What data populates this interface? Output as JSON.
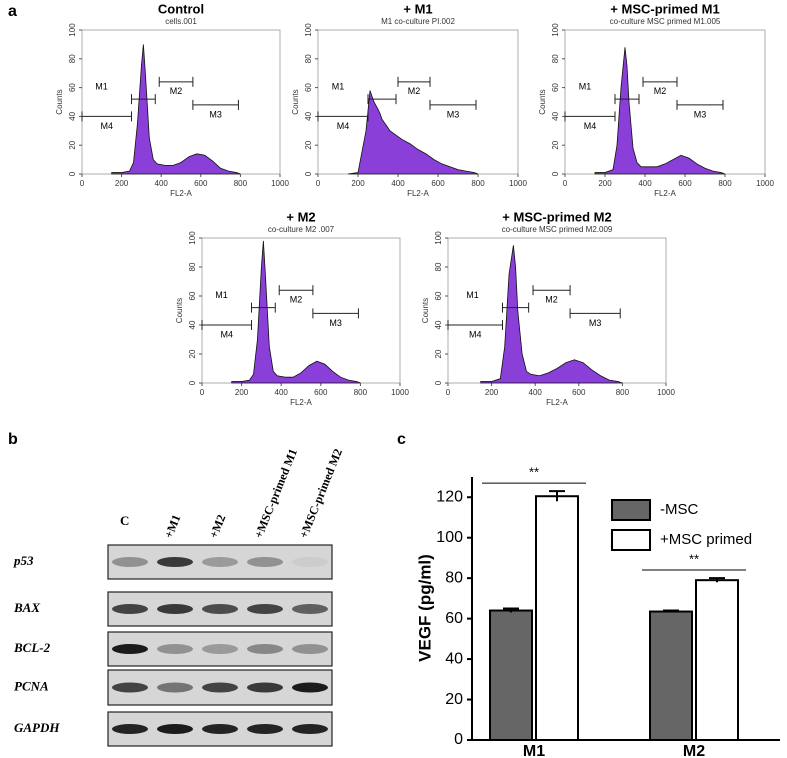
{
  "panel_labels": [
    "a",
    "b",
    "c"
  ],
  "chart_data": [
    {
      "type": "area",
      "title": "Control",
      "subtitle": "cells.001",
      "x_label": "FL2-A",
      "y_label": "Counts",
      "x": [
        150,
        200,
        240,
        260,
        280,
        300,
        310,
        320,
        340,
        360,
        380,
        420,
        460,
        500,
        540,
        580,
        620,
        660,
        700,
        740,
        780,
        800
      ],
      "values": [
        1,
        1,
        2,
        8,
        35,
        75,
        90,
        70,
        25,
        10,
        7,
        6,
        6,
        8,
        12,
        14,
        13,
        9,
        4,
        2,
        1,
        0
      ],
      "color": "#8a3fd8",
      "xlim": [
        0,
        1000
      ],
      "ylim": [
        0,
        100
      ],
      "xticks": [
        0,
        200,
        400,
        600,
        800,
        1000
      ],
      "yticks": [
        0,
        20,
        40,
        60,
        80,
        100
      ],
      "gates": [
        {
          "name": "M1",
          "range": [
            250,
            370
          ],
          "level": 52
        },
        {
          "name": "M2",
          "range": [
            390,
            560
          ],
          "level": 64
        },
        {
          "name": "M3",
          "range": [
            560,
            790
          ],
          "level": 48
        },
        {
          "name": "M4",
          "range": [
            0,
            250
          ],
          "level": 40
        }
      ]
    },
    {
      "type": "area",
      "title": "+ M1",
      "subtitle": "M1 co-culture   PI.002",
      "x_label": "FL2-A",
      "y_label": "Counts",
      "x": [
        150,
        200,
        240,
        260,
        280,
        300,
        310,
        320,
        340,
        360,
        380,
        420,
        460,
        500,
        540,
        580,
        620,
        660,
        700,
        740,
        780,
        800
      ],
      "values": [
        0,
        1,
        30,
        58,
        50,
        45,
        42,
        38,
        34,
        30,
        28,
        24,
        21,
        17,
        14,
        10,
        7,
        5,
        3,
        2,
        1,
        0
      ],
      "color": "#8a3fd8",
      "xlim": [
        0,
        1000
      ],
      "ylim": [
        0,
        100
      ],
      "xticks": [
        0,
        200,
        400,
        600,
        800,
        1000
      ],
      "yticks": [
        0,
        20,
        40,
        60,
        80,
        100
      ],
      "gates": [
        {
          "name": "M1",
          "range": [
            250,
            390
          ],
          "level": 52
        },
        {
          "name": "M2",
          "range": [
            400,
            560
          ],
          "level": 64
        },
        {
          "name": "M3",
          "range": [
            560,
            790
          ],
          "level": 48
        },
        {
          "name": "M4",
          "range": [
            0,
            250
          ],
          "level": 40
        }
      ]
    },
    {
      "type": "area",
      "title": "+ MSC-primed M1",
      "subtitle": "co-culture MSC primed M1.005",
      "x_label": "FL2-A",
      "y_label": "Counts",
      "x": [
        150,
        200,
        240,
        260,
        280,
        300,
        310,
        320,
        340,
        360,
        380,
        420,
        460,
        500,
        540,
        580,
        620,
        660,
        700,
        740,
        780,
        800
      ],
      "values": [
        1,
        1,
        3,
        20,
        60,
        88,
        75,
        50,
        18,
        8,
        5,
        5,
        5,
        7,
        10,
        13,
        11,
        7,
        4,
        2,
        1,
        0
      ],
      "color": "#8a3fd8",
      "xlim": [
        0,
        1000
      ],
      "ylim": [
        0,
        100
      ],
      "xticks": [
        0,
        200,
        400,
        600,
        800,
        1000
      ],
      "yticks": [
        0,
        20,
        40,
        60,
        80,
        100
      ],
      "gates": [
        {
          "name": "M1",
          "range": [
            250,
            370
          ],
          "level": 52
        },
        {
          "name": "M2",
          "range": [
            390,
            560
          ],
          "level": 64
        },
        {
          "name": "M3",
          "range": [
            560,
            790
          ],
          "level": 48
        },
        {
          "name": "M4",
          "range": [
            0,
            250
          ],
          "level": 40
        }
      ]
    },
    {
      "type": "area",
      "title": "+ M2",
      "subtitle": "co-culture M2 .007",
      "x_label": "FL2-A",
      "y_label": "Counts",
      "x": [
        150,
        200,
        240,
        260,
        280,
        300,
        310,
        320,
        340,
        360,
        380,
        420,
        460,
        500,
        540,
        580,
        620,
        660,
        700,
        740,
        780,
        800
      ],
      "values": [
        1,
        1,
        2,
        6,
        30,
        80,
        98,
        75,
        25,
        8,
        5,
        4,
        4,
        7,
        12,
        15,
        13,
        8,
        4,
        2,
        1,
        0
      ],
      "color": "#8a3fd8",
      "xlim": [
        0,
        1000
      ],
      "ylim": [
        0,
        100
      ],
      "xticks": [
        0,
        200,
        400,
        600,
        800,
        1000
      ],
      "yticks": [
        0,
        20,
        40,
        60,
        80,
        100
      ],
      "gates": [
        {
          "name": "M1",
          "range": [
            250,
            370
          ],
          "level": 52
        },
        {
          "name": "M2",
          "range": [
            390,
            560
          ],
          "level": 64
        },
        {
          "name": "M3",
          "range": [
            560,
            790
          ],
          "level": 48
        },
        {
          "name": "M4",
          "range": [
            0,
            250
          ],
          "level": 40
        }
      ]
    },
    {
      "type": "area",
      "title": "+ MSC-primed M2",
      "subtitle": "co-culture MSC primed M2.009",
      "x_label": "FL2-A",
      "y_label": "Counts",
      "x": [
        150,
        200,
        240,
        260,
        280,
        300,
        310,
        320,
        340,
        360,
        380,
        420,
        460,
        500,
        540,
        580,
        620,
        660,
        700,
        740,
        780,
        800
      ],
      "values": [
        1,
        1,
        3,
        25,
        75,
        95,
        80,
        50,
        20,
        8,
        6,
        5,
        7,
        10,
        14,
        16,
        14,
        9,
        5,
        2,
        1,
        0
      ],
      "color": "#8a3fd8",
      "xlim": [
        0,
        1000
      ],
      "ylim": [
        0,
        100
      ],
      "xticks": [
        0,
        200,
        400,
        600,
        800,
        1000
      ],
      "yticks": [
        0,
        20,
        40,
        60,
        80,
        100
      ],
      "gates": [
        {
          "name": "M1",
          "range": [
            250,
            370
          ],
          "level": 52
        },
        {
          "name": "M2",
          "range": [
            390,
            560
          ],
          "level": 64
        },
        {
          "name": "M3",
          "range": [
            560,
            790
          ],
          "level": 48
        },
        {
          "name": "M4",
          "range": [
            0,
            250
          ],
          "level": 40
        }
      ]
    },
    {
      "type": "bar",
      "y_label": "VEGF (pg/ml)",
      "categories": [
        "M1",
        "M2"
      ],
      "series": [
        {
          "name": "-MSC",
          "color": "#666666",
          "values": [
            64,
            63.5
          ],
          "errors": [
            1,
            0.5
          ]
        },
        {
          "name": "+MSC primed",
          "color": "#ffffff",
          "values": [
            120.5,
            79
          ],
          "errors": [
            2.5,
            1
          ]
        }
      ],
      "ylim": [
        0,
        130
      ],
      "yticks": [
        0,
        20,
        40,
        60,
        80,
        100,
        120
      ],
      "significance": [
        {
          "label": "**",
          "category": 0,
          "y": 127
        },
        {
          "label": "**",
          "category": 1,
          "y": 84
        }
      ]
    }
  ],
  "blot": {
    "lanes": [
      "C",
      "+M1",
      "+M2",
      "+MSC-primed M1",
      "+MSC-primed M2"
    ],
    "rows": [
      "p53",
      "BAX",
      "BCL-2",
      "PCNA",
      "GAPDH"
    ]
  }
}
